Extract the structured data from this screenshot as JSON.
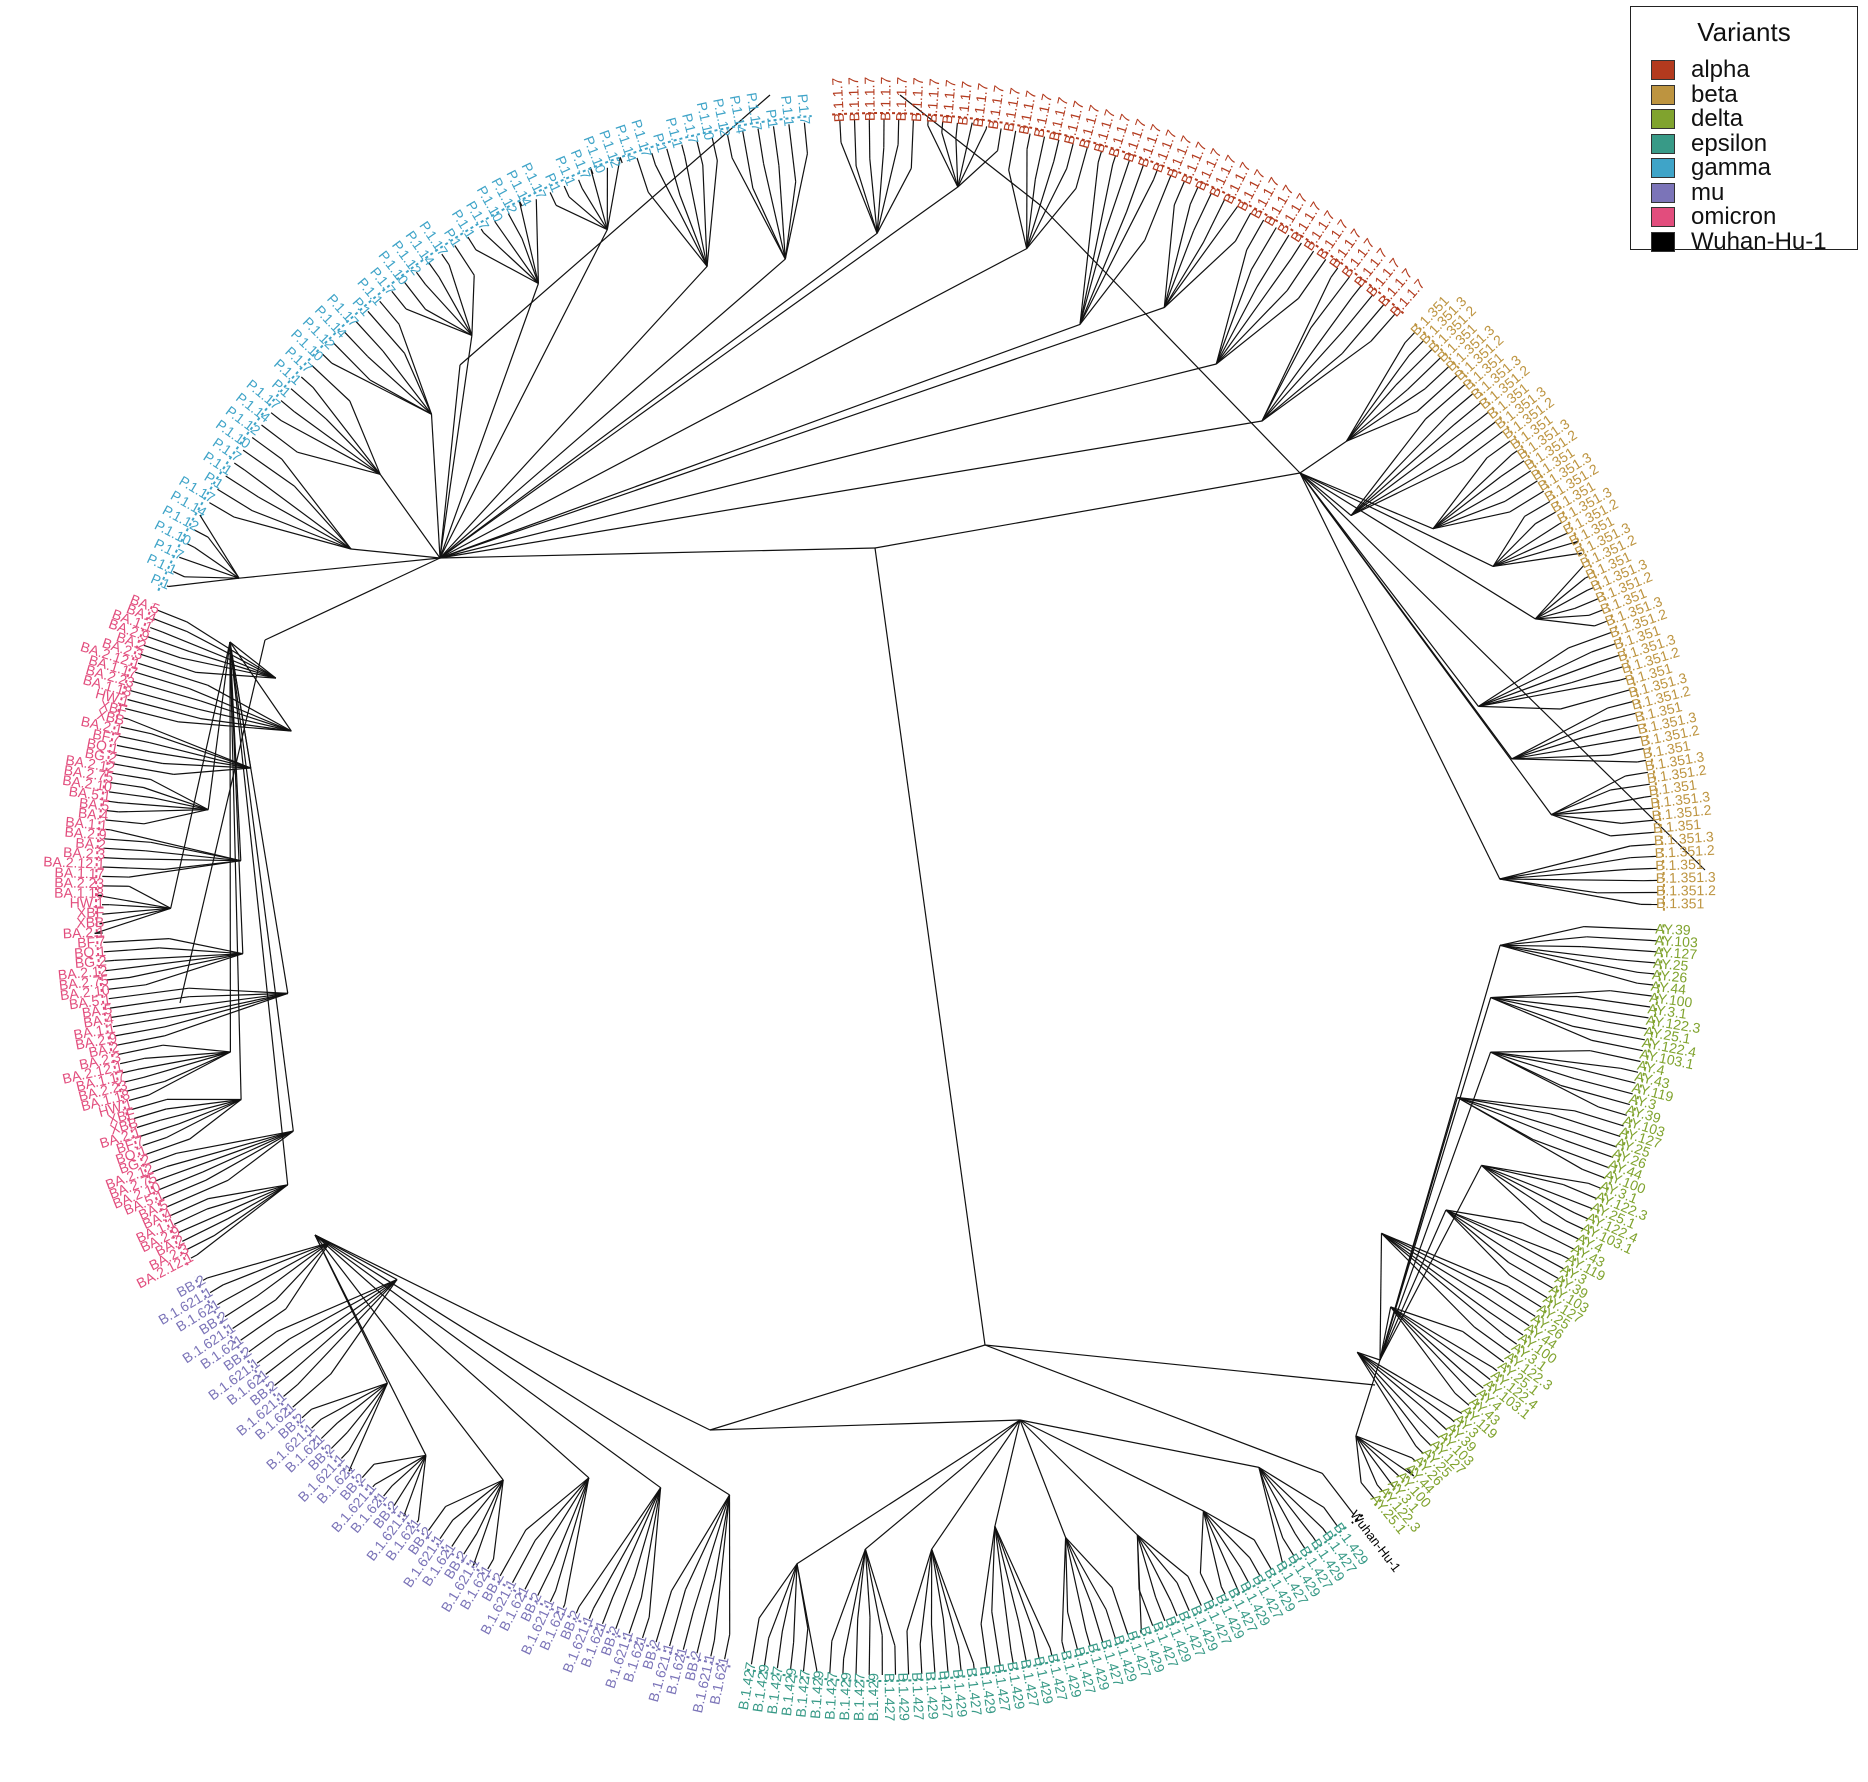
{
  "legend": {
    "title": "Variants",
    "items": [
      {
        "label": "alpha",
        "color": "#B33A1E"
      },
      {
        "label": "beta",
        "color": "#BD9440"
      },
      {
        "label": "delta",
        "color": "#80A32E"
      },
      {
        "label": "epsilon",
        "color": "#389A87"
      },
      {
        "label": "gamma",
        "color": "#3FA4C8"
      },
      {
        "label": "mu",
        "color": "#7B74B8"
      },
      {
        "label": "omicron",
        "color": "#E24D7D"
      },
      {
        "label": "Wuhan-Hu-1",
        "color": "#000000"
      }
    ]
  },
  "tip_labels": {
    "alpha": [
      "B.1.1.7"
    ],
    "beta": [
      "B.1.351",
      "B.1.351.3",
      "B.1.351.2"
    ],
    "delta": [
      "AY.39",
      "AY.103",
      "AY.127",
      "AY.25",
      "AY.26",
      "AY.44",
      "AY.100",
      "AY.3.1",
      "AY.122.3",
      "AY.25.1",
      "AY.122.4",
      "AY.103.1",
      "AY.4",
      "AY.43",
      "AY.119",
      "AY.3"
    ],
    "epsilon": [
      "B.1.429",
      "B.1.427"
    ],
    "gamma": [
      "P.1",
      "P.1.1",
      "P.1.7",
      "P.1.10",
      "P.1.12",
      "P.1.14",
      "P.1.17"
    ],
    "mu": [
      "B.1.621",
      "B.1.621.1",
      "BB.2"
    ],
    "omicron": [
      "BA.2.12.1",
      "BA.2.3",
      "BA.2",
      "BA.2.9",
      "BA.1.1",
      "BA.4",
      "BA.5",
      "BA.5.1",
      "BA.2.10",
      "BA.2.75",
      "BA.2.12",
      "BG.2",
      "BQ.1",
      "BF.7",
      "BA.2.1",
      "XBB",
      "XBF",
      "HW.1",
      "BA.1.18",
      "BA.2.23",
      "BA.1.17"
    ],
    "wuhan": [
      "Wuhan-Hu-1"
    ]
  },
  "clades": [
    {
      "variant": "alpha",
      "label_key": "alpha",
      "start_deg": -93.5,
      "end_deg": -48,
      "tips": 40
    },
    {
      "variant": "beta",
      "label_key": "beta",
      "start_deg": -47,
      "end_deg": 1,
      "tips": 52
    },
    {
      "variant": "delta",
      "label_key": "delta",
      "start_deg": 2,
      "end_deg": 51,
      "tips": 58
    },
    {
      "variant": "wuhan",
      "label_key": "wuhan",
      "start_deg": 52,
      "end_deg": 53,
      "tips": 1
    },
    {
      "variant": "epsilon",
      "label_key": "epsilon",
      "start_deg": 53.5,
      "end_deg": 100,
      "tips": 46
    },
    {
      "variant": "mu",
      "label_key": "mu",
      "start_deg": 101,
      "end_deg": 151,
      "tips": 48
    },
    {
      "variant": "omicron",
      "label_key": "omicron",
      "start_deg": 152,
      "end_deg": 202,
      "tips": 70
    },
    {
      "variant": "gamma",
      "label_key": "gamma",
      "start_deg": 203,
      "end_deg": 265,
      "tips": 52
    }
  ]
}
